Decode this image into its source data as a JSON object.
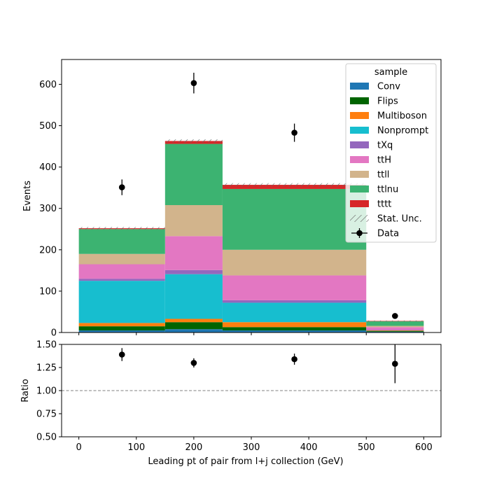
{
  "chart_data": [
    {
      "type": "bar",
      "stacked": true,
      "x_edges": [
        0,
        150,
        250,
        500,
        600
      ],
      "ylabel": "Events",
      "ylim": [
        0,
        660
      ],
      "xlim": [
        -30,
        630
      ],
      "yticks": [
        0,
        100,
        200,
        300,
        400,
        500,
        600
      ],
      "yticks_labels": [
        "0",
        "100",
        "200",
        "300",
        "400",
        "500",
        "600"
      ],
      "legend_title": "sample",
      "legend_position": "top-right",
      "series": [
        {
          "name": "Conv",
          "color": "#1f77b4",
          "values": [
            5,
            8,
            5,
            2
          ]
        },
        {
          "name": "Flips",
          "color": "#006400",
          "values": [
            10,
            17,
            8,
            2
          ]
        },
        {
          "name": "Multiboson",
          "color": "#ff7f0e",
          "values": [
            8,
            8,
            12,
            1
          ]
        },
        {
          "name": "Nonprompt",
          "color": "#17becf",
          "values": [
            102,
            108,
            47,
            0
          ]
        },
        {
          "name": "tXq",
          "color": "#9467bd",
          "values": [
            5,
            10,
            6,
            1
          ]
        },
        {
          "name": "ttH",
          "color": "#e377c2",
          "values": [
            35,
            82,
            60,
            7
          ]
        },
        {
          "name": "ttll",
          "color": "#d2b48c",
          "values": [
            25,
            75,
            62,
            3
          ]
        },
        {
          "name": "ttlnu",
          "color": "#3cb371",
          "values": [
            60,
            148,
            147,
            11
          ]
        },
        {
          "name": "tttt",
          "color": "#d62728",
          "values": [
            2,
            7,
            10,
            1
          ]
        }
      ],
      "stat_unc_label": "Stat. Unc.",
      "stat_unc_halfwidth": [
        3,
        4,
        4,
        1
      ],
      "data": {
        "name": "Data",
        "x": [
          75,
          200,
          375,
          550
        ],
        "y": [
          351,
          603,
          483,
          40
        ],
        "yerr": [
          19,
          25,
          22,
          6
        ]
      }
    },
    {
      "type": "scatter",
      "ylabel": "Ratio",
      "xlabel": "Leading pt of pair from l+j collection (GeV)",
      "ylim": [
        0.5,
        1.5
      ],
      "xlim": [
        -30,
        630
      ],
      "yticks": [
        0.5,
        0.75,
        1.0,
        1.25,
        1.5
      ],
      "yticks_labels": [
        "0.50",
        "0.75",
        "1.00",
        "1.25",
        "1.50"
      ],
      "xticks": [
        0,
        100,
        200,
        300,
        400,
        500,
        600
      ],
      "xticks_labels": [
        "0",
        "100",
        "200",
        "300",
        "400",
        "500",
        "600"
      ],
      "reference_line": 1.0,
      "x": [
        75,
        200,
        375,
        550
      ],
      "y": [
        1.39,
        1.3,
        1.34,
        1.29
      ],
      "yerr": [
        0.07,
        0.05,
        0.06,
        0.21
      ]
    }
  ]
}
